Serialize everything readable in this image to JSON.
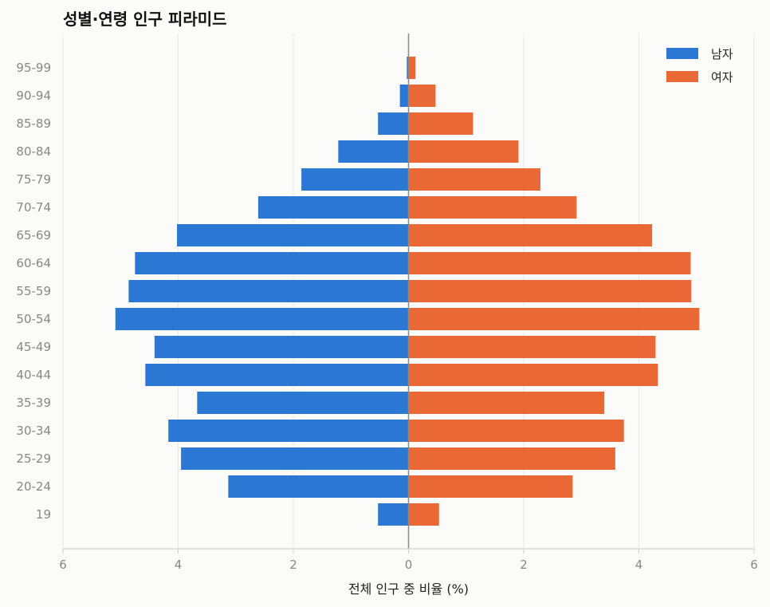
{
  "chart_data": {
    "type": "bar",
    "orientation": "horizontal",
    "title": "성별·연령 인구 피라미드",
    "xlabel": "전체 인구 중 비율 (%)",
    "ylabel": "",
    "categories": [
      "19",
      "20-24",
      "25-29",
      "30-34",
      "35-39",
      "40-44",
      "45-49",
      "50-54",
      "55-59",
      "60-64",
      "65-69",
      "70-74",
      "75-79",
      "80-84",
      "85-89",
      "90-94",
      "95-99"
    ],
    "series": [
      {
        "name": "남자",
        "color": "#2b78d4",
        "values": [
          0.53,
          3.13,
          3.95,
          4.17,
          3.67,
          4.57,
          4.41,
          5.09,
          4.86,
          4.75,
          4.02,
          2.61,
          1.86,
          1.22,
          0.53,
          0.15,
          0.03
        ]
      },
      {
        "name": "여자",
        "color": "#e96835",
        "values": [
          0.53,
          2.85,
          3.59,
          3.74,
          3.4,
          4.33,
          4.29,
          5.05,
          4.91,
          4.9,
          4.23,
          2.92,
          2.29,
          1.91,
          1.12,
          0.47,
          0.12
        ]
      }
    ],
    "xlim": [
      -6,
      6
    ],
    "xticks": [
      6,
      4,
      2,
      0,
      2,
      4,
      6
    ],
    "grid": "vertical",
    "legend": "top-right"
  }
}
